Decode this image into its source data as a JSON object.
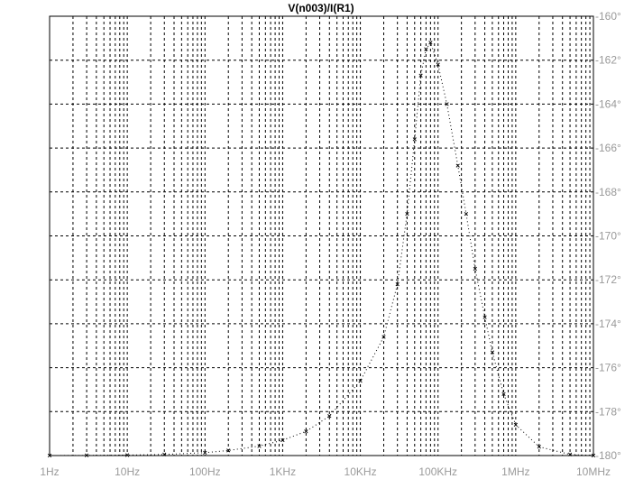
{
  "chart_data": {
    "type": "line",
    "title": "V(n003)/I(R1)",
    "x_scale": "log",
    "x_range_hz": [
      1,
      10000000
    ],
    "x_tick_values": [
      1,
      10,
      100,
      1000,
      10000,
      100000,
      1000000,
      10000000
    ],
    "x_tick_labels": [
      "1Hz",
      "10Hz",
      "100Hz",
      "1KHz",
      "10KHz",
      "100KHz",
      "1MHz",
      "10MHz"
    ],
    "y_range_deg": [
      -180,
      -160
    ],
    "y_tick_values": [
      -160,
      -162,
      -164,
      -166,
      -168,
      -170,
      -172,
      -174,
      -176,
      -178,
      -180
    ],
    "y_tick_labels": [
      "-160°",
      "-162°",
      "-164°",
      "-166°",
      "-168°",
      "-170°",
      "-172°",
      "-174°",
      "-176°",
      "-178°",
      "-180°"
    ],
    "grid": true,
    "line_style": "dotted with x markers",
    "series": [
      {
        "color": "#000000",
        "x": [
          1,
          3,
          10,
          30,
          100,
          200,
          500,
          1000,
          2000,
          4000,
          10000,
          20000,
          30000,
          40000,
          50000,
          60000,
          70000,
          80000,
          100000,
          130000,
          180000,
          230000,
          300000,
          400000,
          500000,
          700000,
          1000000,
          2000000,
          5000000,
          10000000
        ],
        "y": [
          -180,
          -179.99,
          -179.98,
          -179.95,
          -179.87,
          -179.77,
          -179.57,
          -179.3,
          -178.9,
          -178.2,
          -176.6,
          -174.6,
          -172.2,
          -169.0,
          -165.6,
          -162.7,
          -161.5,
          -161.2,
          -162.2,
          -164.0,
          -166.8,
          -169.0,
          -171.5,
          -173.7,
          -175.3,
          -177.2,
          -178.6,
          -179.6,
          -179.95,
          -180
        ]
      }
    ]
  }
}
